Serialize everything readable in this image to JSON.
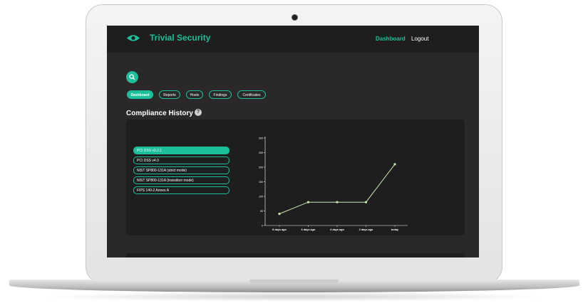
{
  "app": {
    "brand_name": "Trivial Security",
    "brand_icon": "eye-icon",
    "accent_color": "#1bbf9a"
  },
  "nav": {
    "dashboard": "Dashboard",
    "logout": "Logout"
  },
  "search": {
    "icon": "search-icon"
  },
  "tabs": [
    {
      "label": "Dashboard",
      "active": true
    },
    {
      "label": "Reports",
      "active": false
    },
    {
      "label": "Hosts",
      "active": false
    },
    {
      "label": "Findings",
      "active": false
    },
    {
      "label": "Certificates",
      "active": false
    }
  ],
  "section": {
    "title": "Compliance History",
    "help_icon": "question-icon",
    "help_text": "?"
  },
  "standards": [
    {
      "label": "PCI DSS v3.2.1",
      "active": true
    },
    {
      "label": "PCI DSS v4.0",
      "active": false
    },
    {
      "label": "NIST SP800-131A (strict mode)",
      "active": false
    },
    {
      "label": "NIST SP800-131A (transition mode)",
      "active": false
    },
    {
      "label": "FIPS 140-2 Annex A",
      "active": false
    }
  ],
  "chart_data": {
    "type": "line",
    "categories": [
      "8 days ago",
      "6 days ago",
      "4 days ago",
      "2 days ago",
      "today"
    ],
    "values": [
      40,
      80,
      80,
      80,
      210
    ],
    "yticks": [
      0,
      50,
      100,
      150,
      200,
      250,
      300
    ],
    "ylim": [
      0,
      300
    ],
    "line_color": "#c9e8b0",
    "grid": false
  }
}
